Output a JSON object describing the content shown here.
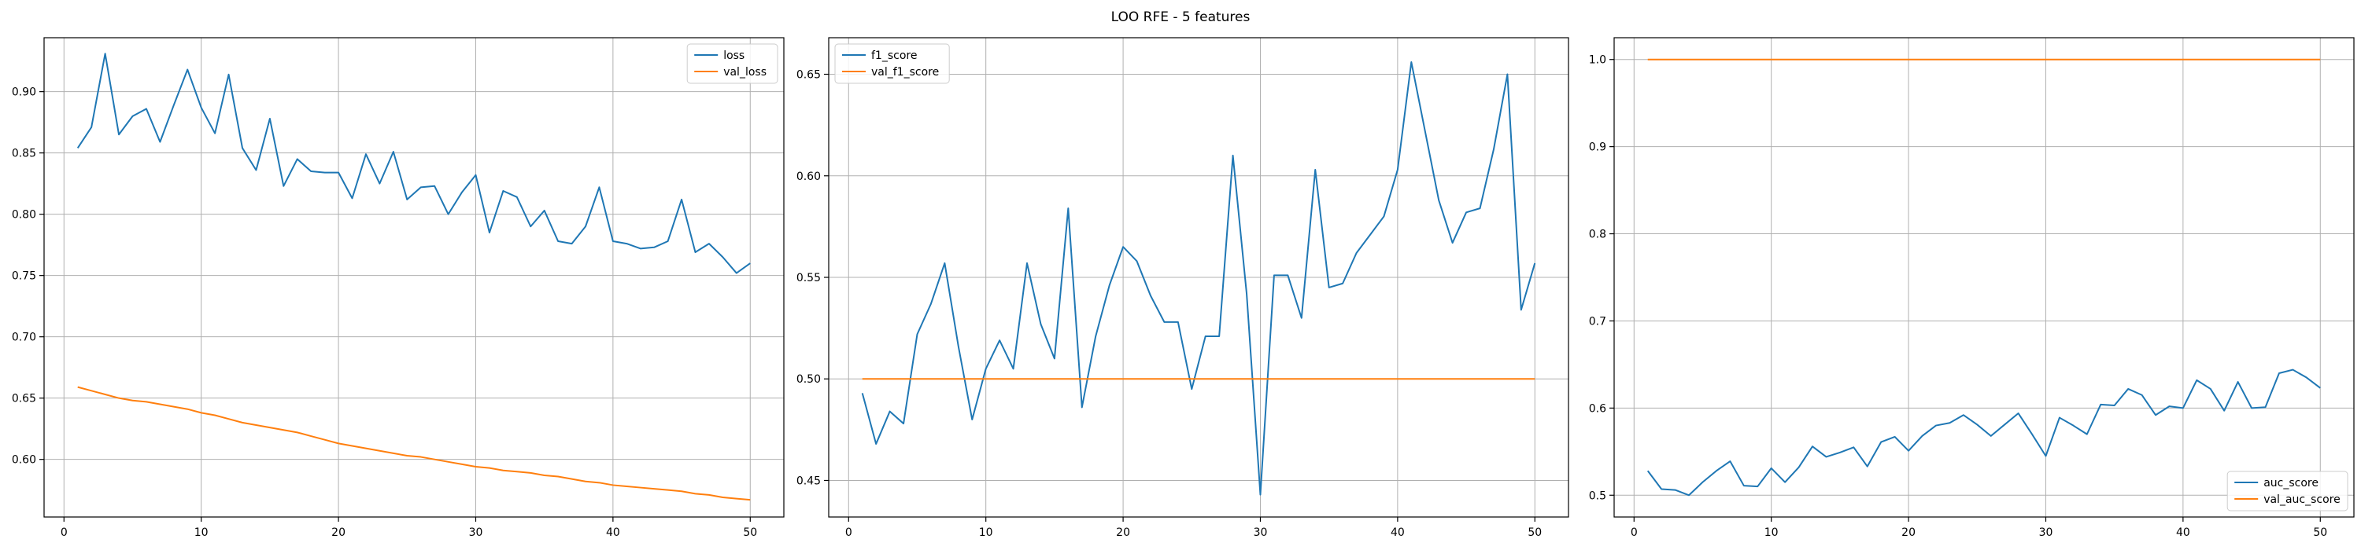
{
  "figure_title": "LOO RFE - 5 features",
  "colors": {
    "blue": "#1f77b4",
    "orange": "#ff7f0e",
    "grid": "#b0b0b0",
    "axis": "#000000"
  },
  "chart_data": [
    {
      "type": "line",
      "title": "",
      "xlabel": "",
      "ylabel": "",
      "grid": true,
      "xlim": [
        -1.45,
        52.45
      ],
      "ylim": [
        0.553,
        0.944
      ],
      "xticks": [
        0,
        10,
        20,
        30,
        40,
        50
      ],
      "xtick_labels": [
        "0",
        "10",
        "20",
        "30",
        "40",
        "50"
      ],
      "yticks": [
        0.6,
        0.65,
        0.7,
        0.75,
        0.8,
        0.85,
        0.9
      ],
      "ytick_labels": [
        "0.60",
        "0.65",
        "0.70",
        "0.75",
        "0.80",
        "0.85",
        "0.90"
      ],
      "legend": {
        "position": "upper right",
        "entries": [
          "loss",
          "val_loss"
        ]
      },
      "x": [
        1,
        2,
        3,
        4,
        5,
        6,
        7,
        8,
        9,
        10,
        11,
        12,
        13,
        14,
        15,
        16,
        17,
        18,
        19,
        20,
        21,
        22,
        23,
        24,
        25,
        26,
        27,
        28,
        29,
        30,
        31,
        32,
        33,
        34,
        35,
        36,
        37,
        38,
        39,
        40,
        41,
        42,
        43,
        44,
        45,
        46,
        47,
        48,
        49,
        50
      ],
      "series": [
        {
          "name": "loss",
          "color": "#1f77b4",
          "values": [
            0.854,
            0.871,
            0.931,
            0.865,
            0.88,
            0.886,
            0.859,
            0.889,
            0.918,
            0.887,
            0.866,
            0.914,
            0.854,
            0.836,
            0.878,
            0.823,
            0.845,
            0.835,
            0.834,
            0.834,
            0.813,
            0.849,
            0.825,
            0.851,
            0.812,
            0.822,
            0.823,
            0.8,
            0.818,
            0.832,
            0.785,
            0.819,
            0.814,
            0.79,
            0.803,
            0.778,
            0.776,
            0.79,
            0.822,
            0.778,
            0.776,
            0.772,
            0.773,
            0.778,
            0.812,
            0.769,
            0.776,
            0.765,
            0.752,
            0.76
          ]
        },
        {
          "name": "val_loss",
          "color": "#ff7f0e",
          "values": [
            0.659,
            0.656,
            0.653,
            0.65,
            0.648,
            0.647,
            0.645,
            0.643,
            0.641,
            0.638,
            0.636,
            0.633,
            0.63,
            0.628,
            0.626,
            0.624,
            0.622,
            0.619,
            0.616,
            0.613,
            0.611,
            0.609,
            0.607,
            0.605,
            0.603,
            0.602,
            0.6,
            0.598,
            0.596,
            0.594,
            0.593,
            0.591,
            0.59,
            0.589,
            0.587,
            0.586,
            0.584,
            0.582,
            0.581,
            0.579,
            0.578,
            0.577,
            0.576,
            0.575,
            0.574,
            0.572,
            0.571,
            0.569,
            0.568,
            0.567
          ]
        }
      ]
    },
    {
      "type": "line",
      "title": "",
      "xlabel": "",
      "ylabel": "",
      "grid": true,
      "xlim": [
        -1.45,
        52.45
      ],
      "ylim": [
        0.432,
        0.668
      ],
      "xticks": [
        0,
        10,
        20,
        30,
        40,
        50
      ],
      "xtick_labels": [
        "0",
        "10",
        "20",
        "30",
        "40",
        "50"
      ],
      "yticks": [
        0.45,
        0.5,
        0.55,
        0.6,
        0.65
      ],
      "ytick_labels": [
        "0.45",
        "0.50",
        "0.55",
        "0.60",
        "0.65"
      ],
      "legend": {
        "position": "upper left",
        "entries": [
          "f1_score",
          "val_f1_score"
        ]
      },
      "x": [
        1,
        2,
        3,
        4,
        5,
        6,
        7,
        8,
        9,
        10,
        11,
        12,
        13,
        14,
        15,
        16,
        17,
        18,
        19,
        20,
        21,
        22,
        23,
        24,
        25,
        26,
        27,
        28,
        29,
        30,
        31,
        32,
        33,
        34,
        35,
        36,
        37,
        38,
        39,
        40,
        41,
        42,
        43,
        44,
        45,
        46,
        47,
        48,
        49,
        50
      ],
      "series": [
        {
          "name": "f1_score",
          "color": "#1f77b4",
          "values": [
            0.493,
            0.468,
            0.484,
            0.478,
            0.522,
            0.537,
            0.557,
            0.516,
            0.48,
            0.505,
            0.519,
            0.505,
            0.557,
            0.527,
            0.51,
            0.584,
            0.486,
            0.521,
            0.546,
            0.565,
            0.558,
            0.541,
            0.528,
            0.528,
            0.495,
            0.521,
            0.521,
            0.61,
            0.542,
            0.443,
            0.551,
            0.551,
            0.53,
            0.603,
            0.545,
            0.547,
            0.562,
            0.571,
            0.58,
            0.603,
            0.656,
            0.622,
            0.588,
            0.567,
            0.582,
            0.584,
            0.613,
            0.65,
            0.534,
            0.557
          ]
        },
        {
          "name": "val_f1_score",
          "color": "#ff7f0e",
          "values": [
            0.5,
            0.5,
            0.5,
            0.5,
            0.5,
            0.5,
            0.5,
            0.5,
            0.5,
            0.5,
            0.5,
            0.5,
            0.5,
            0.5,
            0.5,
            0.5,
            0.5,
            0.5,
            0.5,
            0.5,
            0.5,
            0.5,
            0.5,
            0.5,
            0.5,
            0.5,
            0.5,
            0.5,
            0.5,
            0.5,
            0.5,
            0.5,
            0.5,
            0.5,
            0.5,
            0.5,
            0.5,
            0.5,
            0.5,
            0.5,
            0.5,
            0.5,
            0.5,
            0.5,
            0.5,
            0.5,
            0.5,
            0.5,
            0.5,
            0.5
          ]
        }
      ]
    },
    {
      "type": "line",
      "title": "",
      "xlabel": "",
      "ylabel": "",
      "grid": true,
      "xlim": [
        -1.45,
        52.45
      ],
      "ylim": [
        0.475,
        1.025
      ],
      "xticks": [
        0,
        10,
        20,
        30,
        40,
        50
      ],
      "xtick_labels": [
        "0",
        "10",
        "20",
        "30",
        "40",
        "50"
      ],
      "yticks": [
        0.5,
        0.6,
        0.7,
        0.8,
        0.9,
        1.0
      ],
      "ytick_labels": [
        "0.5",
        "0.6",
        "0.7",
        "0.8",
        "0.9",
        "1.0"
      ],
      "legend": {
        "position": "lower right",
        "entries": [
          "auc_score",
          "val_auc_score"
        ]
      },
      "x": [
        1,
        2,
        3,
        4,
        5,
        6,
        7,
        8,
        9,
        10,
        11,
        12,
        13,
        14,
        15,
        16,
        17,
        18,
        19,
        20,
        21,
        22,
        23,
        24,
        25,
        26,
        27,
        28,
        29,
        30,
        31,
        32,
        33,
        34,
        35,
        36,
        37,
        38,
        39,
        40,
        41,
        42,
        43,
        44,
        45,
        46,
        47,
        48,
        49,
        50
      ],
      "series": [
        {
          "name": "auc_score",
          "color": "#1f77b4",
          "values": [
            0.528,
            0.507,
            0.506,
            0.5,
            0.515,
            0.528,
            0.539,
            0.511,
            0.51,
            0.531,
            0.515,
            0.532,
            0.556,
            0.544,
            0.549,
            0.555,
            0.533,
            0.561,
            0.567,
            0.551,
            0.568,
            0.58,
            0.583,
            0.592,
            0.581,
            0.568,
            0.581,
            0.594,
            0.57,
            0.545,
            0.589,
            0.58,
            0.57,
            0.604,
            0.603,
            0.622,
            0.615,
            0.592,
            0.602,
            0.6,
            0.632,
            0.622,
            0.597,
            0.63,
            0.6,
            0.601,
            0.64,
            0.644,
            0.635,
            0.623
          ]
        },
        {
          "name": "val_auc_score",
          "color": "#ff7f0e",
          "values": [
            1.0,
            1.0,
            1.0,
            1.0,
            1.0,
            1.0,
            1.0,
            1.0,
            1.0,
            1.0,
            1.0,
            1.0,
            1.0,
            1.0,
            1.0,
            1.0,
            1.0,
            1.0,
            1.0,
            1.0,
            1.0,
            1.0,
            1.0,
            1.0,
            1.0,
            1.0,
            1.0,
            1.0,
            1.0,
            1.0,
            1.0,
            1.0,
            1.0,
            1.0,
            1.0,
            1.0,
            1.0,
            1.0,
            1.0,
            1.0,
            1.0,
            1.0,
            1.0,
            1.0,
            1.0,
            1.0,
            1.0,
            1.0,
            1.0,
            1.0
          ]
        }
      ]
    }
  ]
}
